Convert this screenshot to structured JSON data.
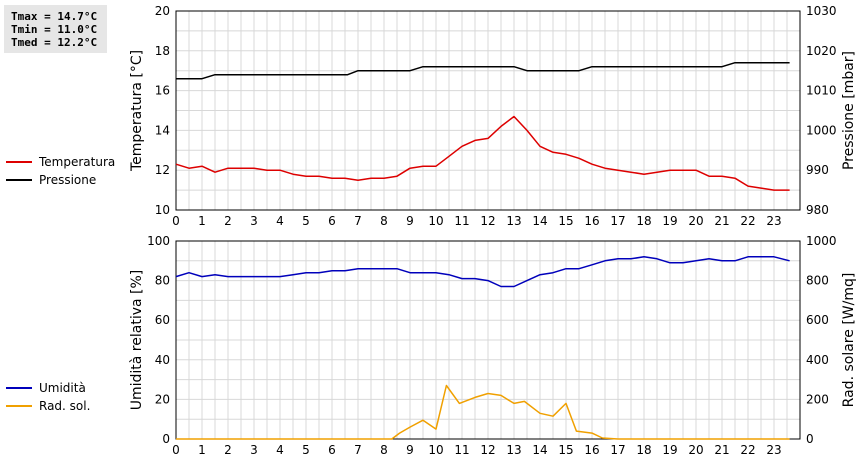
{
  "stats": {
    "tmax": "Tmax = 14.7°C",
    "tmin": "Tmin = 11.0°C",
    "tmed": "Tmed = 12.2°C"
  },
  "colors": {
    "temperatura": "#dd0000",
    "pressione": "#000000",
    "umidita": "#0000bb",
    "rad_sol": "#f0a000",
    "grid": "#d8d8d8"
  },
  "chart_data": [
    {
      "type": "line",
      "ylabel": "Temperatura [°C]",
      "y2label": "Pressione [mbar]",
      "xlim": [
        0,
        24
      ],
      "ylim": [
        10,
        20
      ],
      "y2lim": [
        980,
        1030
      ],
      "xticks": [
        0,
        1,
        2,
        3,
        4,
        5,
        6,
        7,
        8,
        9,
        10,
        11,
        12,
        13,
        14,
        15,
        16,
        17,
        18,
        19,
        20,
        21,
        22,
        23
      ],
      "yticks": [
        10,
        12,
        14,
        16,
        18,
        20
      ],
      "y2ticks": [
        980,
        990,
        1000,
        1010,
        1020,
        1030
      ],
      "grid": true,
      "legend_position": "left",
      "series": [
        {
          "name": "Temperatura",
          "axis": "left",
          "x": [
            0,
            0.5,
            1,
            1.5,
            2,
            2.5,
            3,
            3.5,
            4,
            4.5,
            5,
            5.5,
            6,
            6.5,
            7,
            7.5,
            8,
            8.5,
            9,
            9.5,
            10,
            10.5,
            11,
            11.5,
            12,
            12.5,
            13,
            13.5,
            14,
            14.5,
            15,
            15.5,
            16,
            16.5,
            17,
            17.5,
            18,
            18.5,
            19,
            19.5,
            20,
            20.5,
            21,
            21.5,
            22,
            22.5,
            23,
            23.6
          ],
          "values": [
            12.3,
            12.1,
            12.2,
            11.9,
            12.1,
            12.1,
            12.1,
            12.0,
            12.0,
            11.8,
            11.7,
            11.7,
            11.6,
            11.6,
            11.5,
            11.6,
            11.6,
            11.7,
            12.1,
            12.2,
            12.2,
            12.7,
            13.2,
            13.5,
            13.6,
            14.2,
            14.7,
            14.0,
            13.2,
            12.9,
            12.8,
            12.6,
            12.3,
            12.1,
            12.0,
            11.9,
            11.8,
            11.9,
            12.0,
            12.0,
            12.0,
            11.7,
            11.7,
            11.6,
            11.2,
            11.1,
            11.0,
            11.0
          ]
        },
        {
          "name": "Pressione",
          "axis": "right",
          "x": [
            0,
            1,
            1.5,
            2,
            3,
            4,
            5,
            6,
            6.6,
            7,
            8,
            9,
            9.5,
            10,
            11,
            12,
            13,
            13.5,
            14,
            15,
            15.5,
            16,
            17,
            18,
            19,
            20,
            21,
            21.5,
            22,
            23,
            23.6
          ],
          "values": [
            1013,
            1013,
            1014,
            1014,
            1014,
            1014,
            1014,
            1014,
            1014,
            1015,
            1015,
            1015,
            1016,
            1016,
            1016,
            1016,
            1016,
            1015,
            1015,
            1015,
            1015,
            1016,
            1016,
            1016,
            1016,
            1016,
            1016,
            1017,
            1017,
            1017,
            1017
          ]
        }
      ]
    },
    {
      "type": "line",
      "ylabel": "Umidità relativa [%]",
      "y2label": "Rad. solare [W/mq]",
      "xlim": [
        0,
        24
      ],
      "ylim": [
        0,
        100
      ],
      "y2lim": [
        0,
        1000
      ],
      "xticks": [
        0,
        1,
        2,
        3,
        4,
        5,
        6,
        7,
        8,
        9,
        10,
        11,
        12,
        13,
        14,
        15,
        16,
        17,
        18,
        19,
        20,
        21,
        22,
        23
      ],
      "yticks": [
        0,
        20,
        40,
        60,
        80,
        100
      ],
      "y2ticks": [
        0,
        200,
        400,
        600,
        800,
        1000
      ],
      "grid": true,
      "legend_position": "left",
      "series": [
        {
          "name": "Umidità",
          "axis": "left",
          "x": [
            0,
            0.5,
            1,
            1.5,
            2,
            3,
            4,
            4.5,
            5,
            5.5,
            6,
            6.5,
            7,
            7.5,
            8,
            8.5,
            9,
            10,
            10.5,
            11,
            11.5,
            12,
            12.5,
            13,
            13.5,
            14,
            14.5,
            15,
            15.5,
            16,
            16.5,
            17,
            17.5,
            18,
            18.5,
            19,
            19.5,
            20,
            20.5,
            21,
            21.5,
            22,
            22.5,
            23,
            23.6
          ],
          "values": [
            82,
            84,
            82,
            83,
            82,
            82,
            82,
            83,
            84,
            84,
            85,
            85,
            86,
            86,
            86,
            86,
            84,
            84,
            83,
            81,
            81,
            80,
            77,
            77,
            80,
            83,
            84,
            86,
            86,
            88,
            90,
            91,
            91,
            92,
            91,
            89,
            89,
            90,
            91,
            90,
            90,
            92,
            92,
            92,
            90
          ]
        },
        {
          "name": "Rad. sol.",
          "axis": "right",
          "x": [
            0,
            1,
            2,
            3,
            4,
            5,
            6,
            7,
            8,
            8.3,
            8.6,
            9,
            9.5,
            10,
            10.4,
            10.9,
            11.5,
            12,
            12.5,
            13,
            13.4,
            14,
            14.5,
            15,
            15.4,
            16,
            16.4,
            17,
            18,
            19,
            20,
            21,
            22,
            23,
            23.6
          ],
          "values": [
            0,
            0,
            0,
            0,
            0,
            0,
            0,
            0,
            0,
            0,
            30,
            60,
            95,
            50,
            270,
            180,
            210,
            230,
            220,
            180,
            190,
            130,
            115,
            180,
            40,
            30,
            5,
            0,
            0,
            0,
            0,
            0,
            0,
            0,
            0
          ]
        }
      ]
    }
  ]
}
